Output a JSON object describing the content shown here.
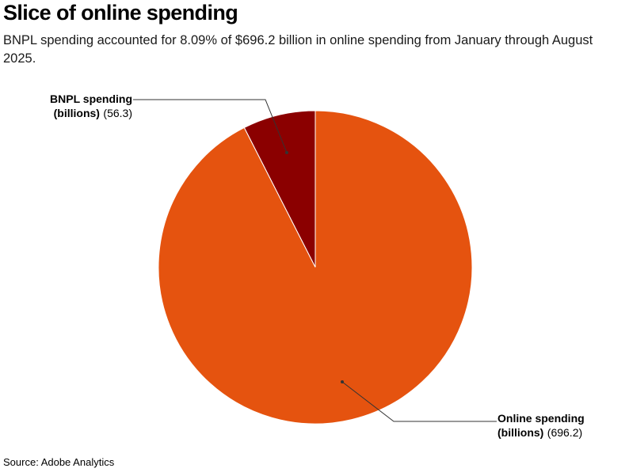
{
  "title": "Slice of online spending",
  "subtitle": "BNPL spending accounted for 8.09% of $696.2 billion in online spending from January through August 2025.",
  "source": "Source: Adobe Analytics",
  "chart_data": {
    "type": "pie",
    "unit": "billions",
    "slices": [
      {
        "name_lines": [
          "BNPL spending",
          "(billions)"
        ],
        "value": 56.3,
        "value_label": "(56.3)",
        "color": "#8b0000"
      },
      {
        "name_lines": [
          "Online spending",
          "(billions)"
        ],
        "value": 696.2,
        "value_label": "(696.2)",
        "color": "#e5530f"
      }
    ]
  }
}
